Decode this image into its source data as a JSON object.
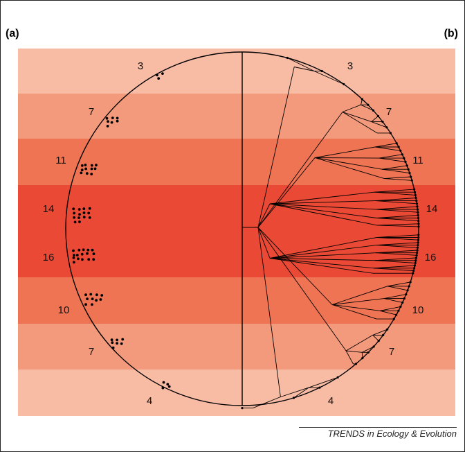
{
  "panel_labels": {
    "a": "(a)",
    "b": "(b)"
  },
  "source": "TRENDS in Ecology & Evolution",
  "colors": {
    "band_light": "#f8bba4",
    "band_mid": "#f49a7c",
    "band_strong": "#ef7454",
    "band_deep": "#ea4a35",
    "line": "#000000"
  },
  "bands": [
    {
      "left_label": "3",
      "right_label": "3",
      "count": 3,
      "shade": "light"
    },
    {
      "left_label": "7",
      "right_label": "7",
      "count": 7,
      "shade": "mid"
    },
    {
      "left_label": "11",
      "right_label": "11",
      "count": 11,
      "shade": "strong"
    },
    {
      "left_label": "14",
      "right_label": "14",
      "count": 14,
      "shade": "deep"
    },
    {
      "left_label": "16",
      "right_label": "16",
      "count": 16,
      "shade": "deep"
    },
    {
      "left_label": "10",
      "right_label": "10",
      "count": 10,
      "shade": "strong"
    },
    {
      "left_label": "7",
      "right_label": "7",
      "count": 7,
      "shade": "mid"
    },
    {
      "left_label": "4",
      "right_label": "4",
      "count": 4,
      "shade": "light"
    }
  ]
}
